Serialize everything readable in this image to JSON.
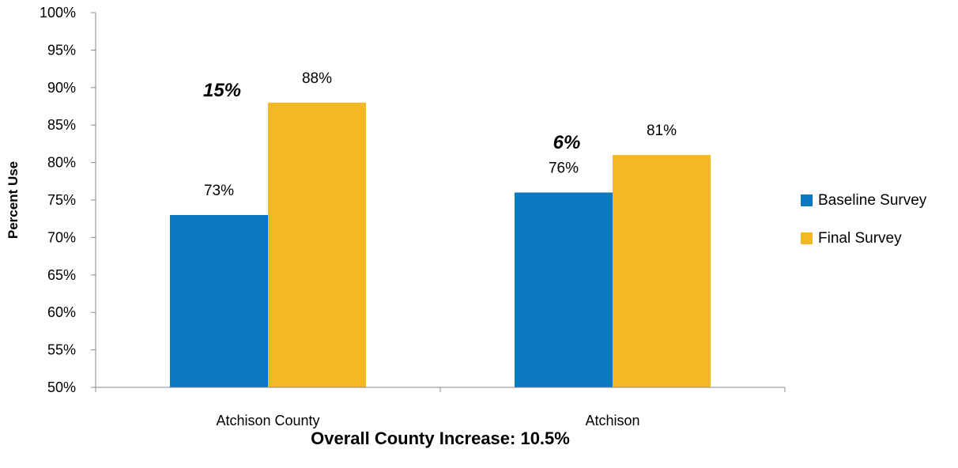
{
  "chart_data": {
    "type": "bar",
    "categories": [
      "Atchison County",
      "Atchison"
    ],
    "series": [
      {
        "name": "Baseline Survey",
        "values": [
          73,
          76
        ],
        "labels": [
          "73%",
          "76%"
        ],
        "color": "#0a78c2"
      },
      {
        "name": "Final Survey",
        "values": [
          88,
          81
        ],
        "labels": [
          "88%",
          "81%"
        ],
        "color": "#f4b823"
      }
    ],
    "annotations": [
      "15%",
      "6%"
    ],
    "ylabel": "Percent Use",
    "xlabel": "Overall County Increase: 10.5%",
    "ylim": [
      50,
      100
    ],
    "ytick_step": 5,
    "ytick_labels": [
      "50%",
      "55%",
      "60%",
      "65%",
      "70%",
      "75%",
      "80%",
      "85%",
      "90%",
      "95%",
      "100%"
    ],
    "legend_position": "right",
    "grid": false
  }
}
